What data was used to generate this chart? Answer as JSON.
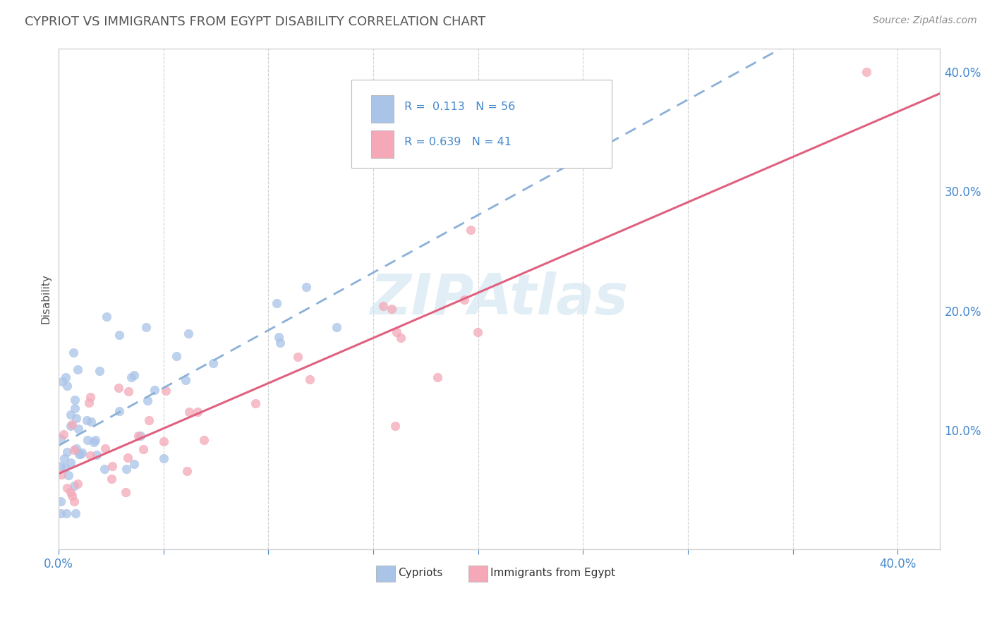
{
  "title": "CYPRIOT VS IMMIGRANTS FROM EGYPT DISABILITY CORRELATION CHART",
  "source": "Source: ZipAtlas.com",
  "ylabel": "Disability",
  "xlim": [
    0.0,
    0.42
  ],
  "ylim": [
    0.0,
    0.42
  ],
  "yticks_right": [
    0.1,
    0.2,
    0.3,
    0.4
  ],
  "cypriot_color": "#aac4e8",
  "egypt_color": "#f4a8b8",
  "cypriot_line_color": "#8ab0d8",
  "egypt_line_color": "#e06080",
  "cypriot_R": 0.113,
  "cypriot_N": 56,
  "egypt_R": 0.639,
  "egypt_N": 41,
  "watermark": "ZIPAtlas",
  "background_color": "#ffffff",
  "title_color": "#555555",
  "source_color": "#888888",
  "tick_color": "#4488cc",
  "label_color": "#555555"
}
